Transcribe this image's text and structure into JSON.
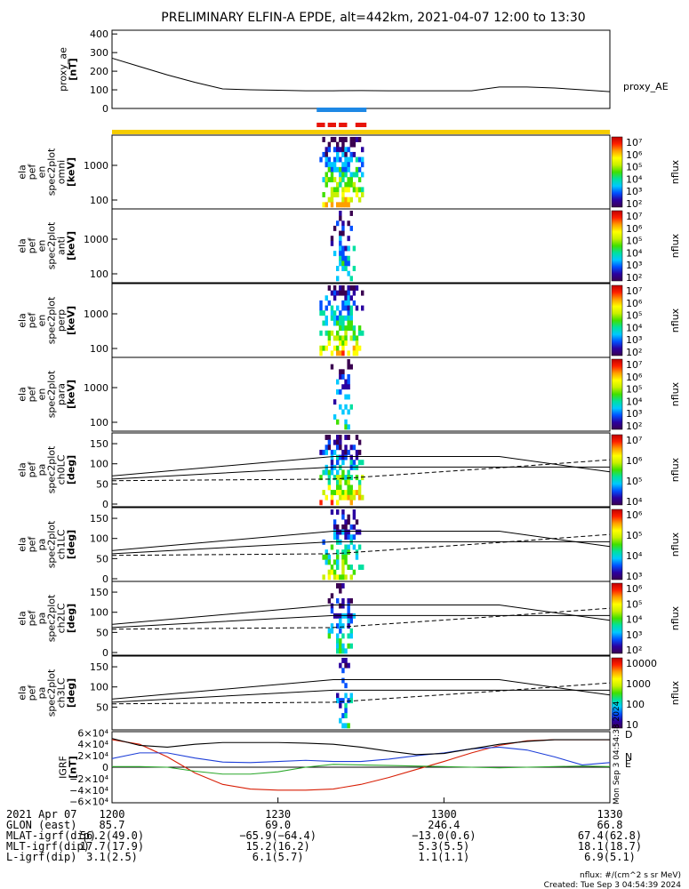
{
  "title": "PRELIMINARY ELFIN-A EPDE, alt=442km, 2021-04-07 12:00 to 13:30",
  "colors": {
    "epd_bar_blue": "#1e88e5",
    "epd_bar_red": "#e8150a",
    "epd_bar_yellow": "#f5cc00",
    "igrf_x": "#d81e05",
    "igrf_y": "#1e3fd8",
    "igrf_z": "#2ba82b",
    "igrf_total": "#000000",
    "colorbar_stops": [
      "#3a0050",
      "#2a00a0",
      "#0050ff",
      "#00c8ff",
      "#00e0a0",
      "#40e000",
      "#c8f000",
      "#ffff00",
      "#ffa000",
      "#ff2000",
      "#c00000"
    ]
  },
  "panels": {
    "proxy_ae": {
      "ylabel_lines": [
        "proxy_ae",
        "[nT]"
      ],
      "yticks": [
        "400",
        "300",
        "200",
        "100",
        "0"
      ],
      "legend": "proxy_AE"
    },
    "spec_en": [
      {
        "ylabel_lines": [
          "ela",
          "pef",
          "en",
          "spec2plot",
          "omni",
          "[keV]"
        ],
        "yticks": [
          "1000",
          "100"
        ]
      },
      {
        "ylabel_lines": [
          "ela",
          "pef",
          "en",
          "spec2plot",
          "anti",
          "[keV]"
        ],
        "yticks": [
          "1000",
          "100"
        ]
      },
      {
        "ylabel_lines": [
          "ela",
          "pef",
          "en",
          "spec2plot",
          "perp",
          "[keV]"
        ],
        "yticks": [
          "1000",
          "100"
        ]
      },
      {
        "ylabel_lines": [
          "ela",
          "pef",
          "en",
          "spec2plot",
          "para",
          "[keV]"
        ],
        "yticks": [
          "1000",
          "100"
        ]
      }
    ],
    "spec_pa": [
      {
        "ylabel_lines": [
          "ela",
          "pef",
          "pa",
          "spec2plot",
          "ch0LC",
          "[deg]"
        ],
        "yticks": [
          "150",
          "100",
          "50",
          "0"
        ]
      },
      {
        "ylabel_lines": [
          "ela",
          "pef",
          "pa",
          "spec2plot",
          "ch1LC",
          "[deg]"
        ],
        "yticks": [
          "150",
          "100",
          "50",
          "0"
        ]
      },
      {
        "ylabel_lines": [
          "ela",
          "pef",
          "pa",
          "spec2plot",
          "ch2LC",
          "[deg]"
        ],
        "yticks": [
          "150",
          "100",
          "50",
          "0"
        ]
      },
      {
        "ylabel_lines": [
          "ela",
          "pef",
          "pa",
          "spec2plot",
          "ch3LC",
          "[deg]"
        ],
        "yticks": [
          "150",
          "100",
          "50"
        ]
      }
    ],
    "igrf": {
      "ylabel_lines": [
        "IGRF",
        "[nT]"
      ],
      "yticks": [
        "6×10⁴",
        "4×10⁴",
        "2×10⁴",
        "0",
        "−2×10⁴",
        "−4×10⁴",
        "−6×10⁴"
      ],
      "right_labels": [
        "D",
        "N",
        "E"
      ],
      "vertical_stamp": "Mon Sep  3 04:54:38 2024"
    }
  },
  "colorbars": [
    {
      "label": "nflux",
      "ticks": [
        "10⁷",
        "10⁶",
        "10⁵",
        "10⁴",
        "10³",
        "10²"
      ]
    },
    {
      "label": "nflux",
      "ticks": [
        "10⁷",
        "10⁶",
        "10⁵",
        "10⁴",
        "10³",
        "10²"
      ]
    },
    {
      "label": "nflux",
      "ticks": [
        "10⁷",
        "10⁶",
        "10⁵",
        "10⁴",
        "10³",
        "10²"
      ]
    },
    {
      "label": "nflux",
      "ticks": [
        "10⁷",
        "10⁶",
        "10⁵",
        "10⁴",
        "10³",
        "10²"
      ]
    },
    {
      "label": "nflux",
      "ticks": [
        "10⁷",
        "10⁶",
        "10⁵",
        "10⁴"
      ]
    },
    {
      "label": "nflux",
      "ticks": [
        "10⁶",
        "10⁵",
        "10⁴",
        "10³"
      ]
    },
    {
      "label": "nflux",
      "ticks": [
        "10⁶",
        "10⁵",
        "10⁴",
        "10³",
        "10²"
      ]
    },
    {
      "label": "nflux",
      "ticks": [
        "10000",
        "1000",
        "100",
        "10"
      ]
    }
  ],
  "footer": {
    "rows": [
      {
        "label": "2021 Apr 07",
        "values": [
          "1200",
          "1230",
          "1300",
          "1330"
        ]
      },
      {
        "label": "GLON (east)",
        "values": [
          "85.7",
          "69.0",
          "246.4",
          "66.8"
        ]
      },
      {
        "label": "MLAT-igrf(dip)",
        "values": [
          "56.2(49.0)",
          "−65.9(−64.4)",
          "−13.0(0.6)",
          "67.4(62.8)"
        ]
      },
      {
        "label": "MLT-igrf(dip)",
        "values": [
          "17.7(17.9)",
          "15.2(16.2)",
          "5.3(5.5)",
          "18.1(18.7)"
        ]
      },
      {
        "label": "L-igrf(dip)",
        "values": [
          "3.1(2.5)",
          "6.1(5.7)",
          "1.1(1.1)",
          "6.9(5.1)"
        ]
      }
    ],
    "note1": "nflux: #/(cm^2 s sr MeV)",
    "note2": "Created: Tue Sep  3 04:54:39 2024"
  },
  "chart_data": {
    "type": "line",
    "time_range": [
      "2021-04-07 12:00",
      "2021-04-07 13:30"
    ],
    "x_ticks": [
      "1200",
      "1230",
      "1300",
      "1330"
    ],
    "x_tick_minutes": [
      0,
      30,
      60,
      90
    ],
    "proxy_ae": {
      "ylim": [
        0,
        420
      ],
      "x_minutes": [
        0,
        5,
        10,
        15,
        20,
        25,
        30,
        35,
        40,
        45,
        50,
        55,
        60,
        65,
        70,
        75,
        80,
        85,
        90
      ],
      "values": [
        270,
        225,
        180,
        140,
        105,
        100,
        98,
        95,
        95,
        96,
        95,
        95,
        95,
        95,
        115,
        115,
        110,
        100,
        90
      ]
    },
    "epd_coverage_minutes": {
      "blue": [
        [
          37,
          46
        ]
      ],
      "red": [
        [
          37,
          38.5
        ],
        [
          39,
          40.5
        ],
        [
          41,
          42.5
        ],
        [
          44,
          46
        ]
      ],
      "yellow": [
        [
          0,
          90
        ]
      ]
    },
    "spectrogram_active_minutes": [
      37.5,
      45.5
    ],
    "pa_reference": {
      "solid_top": [
        [
          0,
          70
        ],
        [
          40,
          118
        ],
        [
          70,
          118
        ],
        [
          90,
          80
        ]
      ],
      "solid_mid": [
        [
          0,
          62
        ],
        [
          40,
          92
        ],
        [
          70,
          92
        ],
        [
          90,
          92
        ]
      ],
      "dashed": [
        [
          0,
          58
        ],
        [
          40,
          62
        ],
        [
          70,
          90
        ],
        [
          90,
          110
        ]
      ]
    },
    "igrf": {
      "ylim": [
        -62000,
        62000
      ],
      "x_minutes": [
        0,
        5,
        10,
        15,
        20,
        25,
        30,
        35,
        40,
        45,
        50,
        55,
        60,
        65,
        70,
        75,
        80,
        85,
        90
      ],
      "series": [
        {
          "name": "D",
          "values": [
            48000,
            40000,
            18000,
            -10000,
            -30000,
            -38000,
            -40000,
            -40000,
            -38000,
            -30000,
            -18000,
            -4000,
            10000,
            25000,
            38000,
            46000,
            48000,
            48000,
            48000
          ]
        },
        {
          "name": "N",
          "values": [
            15000,
            25000,
            25000,
            16000,
            9000,
            8000,
            10000,
            12000,
            10000,
            10000,
            14000,
            20000,
            25000,
            32000,
            35000,
            30000,
            18000,
            4000,
            8000
          ]
        },
        {
          "name": "E",
          "values": [
            1000,
            1000,
            0,
            -7000,
            -12000,
            -12000,
            -8000,
            0,
            5000,
            4000,
            3000,
            2000,
            1000,
            0,
            -1000,
            0,
            1000,
            2000,
            1000
          ]
        },
        {
          "name": "total",
          "values": [
            50000,
            38000,
            35000,
            40000,
            43000,
            43000,
            43000,
            42000,
            40000,
            35000,
            28000,
            22000,
            24000,
            32000,
            40000,
            45000,
            48000,
            48000,
            48000
          ]
        }
      ]
    }
  }
}
